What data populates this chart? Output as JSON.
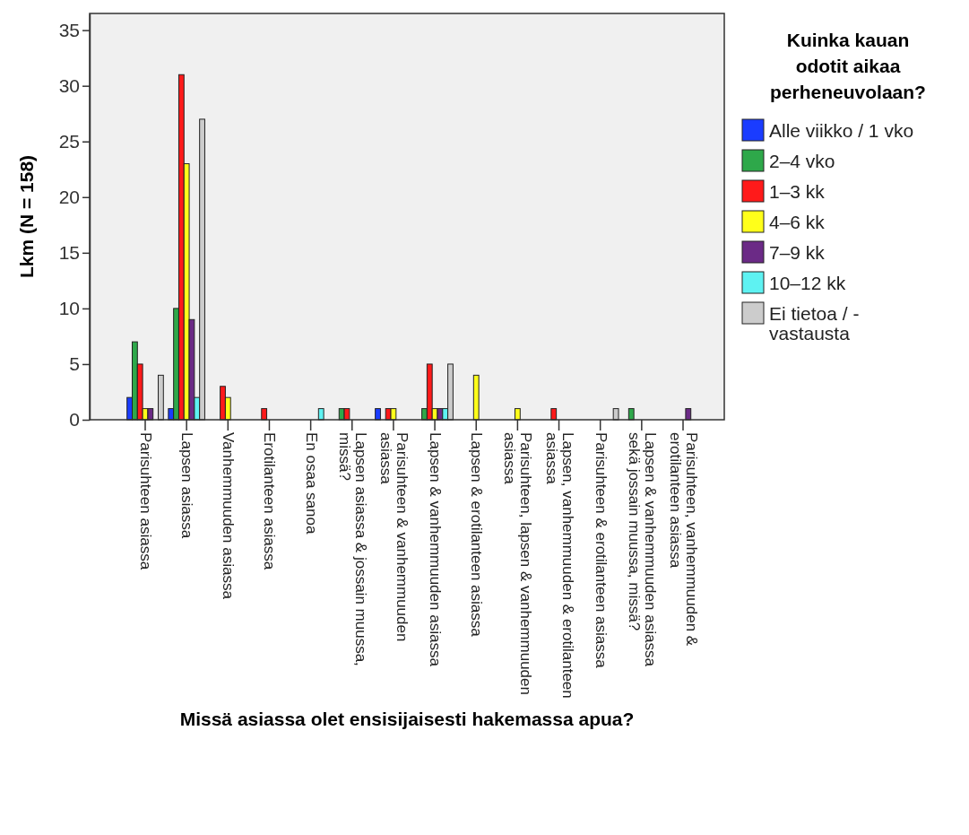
{
  "chart_data": {
    "type": "bar",
    "xlabel": "Missä asiassa olet ensisijaisesti hakemassa apua?",
    "ylabel": "Lkm (N = 158)",
    "legend_title": "Kuinka kauan odotit aikaa perheneuvolaan?",
    "categories": [
      "Parisuhteen asiassa",
      "Lapsen asiassa",
      "Vanhemmuuden asiassa",
      "Erotilanteen asiassa",
      "En osaa sanoa",
      "Lapsen asiassa & jossain muussa,\nmissä?",
      "Parisuhteen & vanhemmuuden\nasiassa",
      "Lapsen & vanhemmuuden asiassa",
      "Lapsen & erotilanteen asiassa",
      "Parisuhteen, lapsen & vanhemmuuden\nasiassa",
      "Lapsen, vanhemmuuden & erotilanteen\nasiassa",
      "Parisuhteen & erotilanteen asiassa",
      "Lapsen & vanhemmuuden asiassa\nsekä jossain muussa, missä?",
      "Parisuhteen, vanhemmuuden &\nerotilanteen asiassa"
    ],
    "series": [
      {
        "name": "Alle viikko / 1 vko",
        "color": "#1a3cff",
        "values": [
          2,
          1,
          0,
          0,
          0,
          0,
          1,
          0,
          0,
          0,
          0,
          0,
          0,
          0
        ]
      },
      {
        "name": "2–4 vko",
        "color": "#2ea84a",
        "values": [
          7,
          10,
          0,
          0,
          0,
          1,
          0,
          1,
          0,
          0,
          0,
          0,
          1,
          0
        ]
      },
      {
        "name": "1–3 kk",
        "color": "#ff1a1a",
        "values": [
          5,
          31,
          3,
          1,
          0,
          1,
          1,
          5,
          0,
          0,
          1,
          0,
          0,
          0
        ]
      },
      {
        "name": "4–6 kk",
        "color": "#ffff1a",
        "values": [
          1,
          23,
          2,
          0,
          0,
          0,
          1,
          1,
          4,
          1,
          0,
          0,
          0,
          0
        ]
      },
      {
        "name": "7–9 kk",
        "color": "#6b2a86",
        "values": [
          1,
          9,
          0,
          0,
          0,
          0,
          0,
          1,
          0,
          0,
          0,
          0,
          0,
          1
        ]
      },
      {
        "name": "10–12 kk",
        "color": "#5ef2f2",
        "values": [
          0,
          2,
          0,
          0,
          1,
          0,
          0,
          1,
          0,
          0,
          0,
          0,
          0,
          0
        ]
      },
      {
        "name": "Ei tietoa / -\nvastausta",
        "color": "#cccccc",
        "values": [
          4,
          27,
          0,
          0,
          0,
          0,
          0,
          5,
          0,
          0,
          0,
          1,
          0,
          0
        ]
      }
    ],
    "ylim": [
      0,
      36.5
    ],
    "yticks": [
      0,
      5,
      10,
      15,
      20,
      25,
      30,
      35
    ],
    "grid": false,
    "legend": "right"
  }
}
